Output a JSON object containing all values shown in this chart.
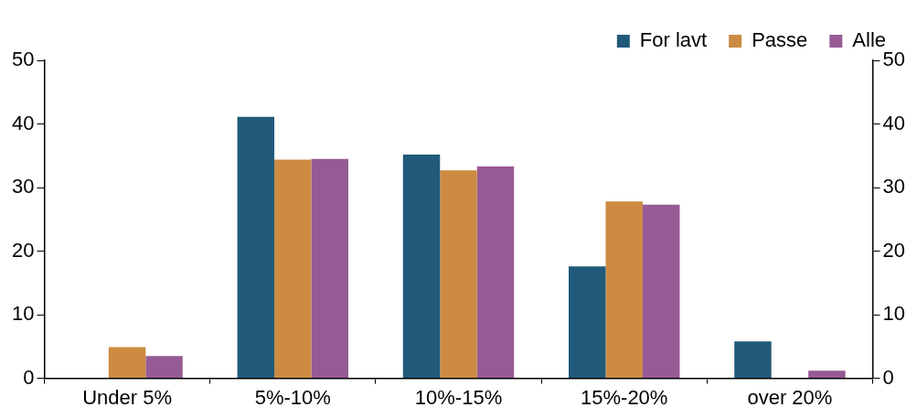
{
  "chart_data": {
    "type": "bar",
    "categories": [
      "Under 5%",
      "5%-10%",
      "10%-15%",
      "15%-20%",
      "over 20%"
    ],
    "series": [
      {
        "name": "For lavt",
        "color": "#215a7a",
        "values": [
          0,
          41.1,
          35.2,
          17.6,
          5.8
        ]
      },
      {
        "name": "Passe",
        "color": "#cd8b42",
        "values": [
          4.9,
          34.4,
          32.7,
          27.8,
          0
        ]
      },
      {
        "name": "Alle",
        "color": "#965a94",
        "values": [
          3.5,
          34.5,
          33.3,
          27.3,
          1.2
        ]
      }
    ],
    "ylim": [
      0,
      50
    ],
    "yticks": [
      0,
      10,
      20,
      30,
      40,
      50
    ],
    "y2lim": [
      0,
      50
    ],
    "y2ticks": [
      0,
      10,
      20,
      30,
      40,
      50
    ],
    "grid": false,
    "legend": "top right"
  }
}
